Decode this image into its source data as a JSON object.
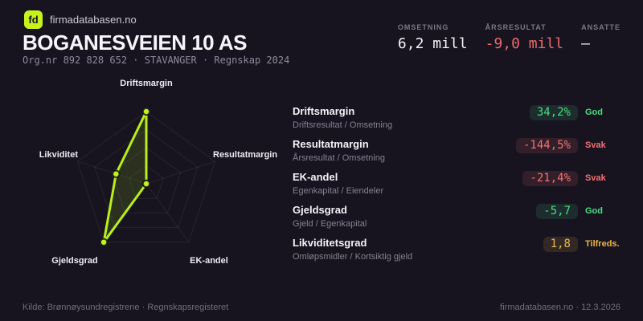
{
  "brand": {
    "logo_text": "fd",
    "site": "firmadatabasen.no",
    "logo_color": "#c7f31d"
  },
  "header": {
    "company_name": "BOGANESVEIEN 10 AS",
    "org_line": "Org.nr 892 828 652  ·  STAVANGER  ·  Regnskap 2024",
    "stats": [
      {
        "label": "OMSETNING",
        "value": "6,2 mill",
        "tone": "neutral"
      },
      {
        "label": "ÅRSRESULTAT",
        "value": "-9,0 mill",
        "tone": "negative"
      },
      {
        "label": "ANSATTE",
        "value": "–",
        "tone": "neutral"
      }
    ]
  },
  "chart_data": {
    "type": "radar",
    "axes": [
      "Driftsmargin",
      "Resultatmargin",
      "EK-andel",
      "Gjeldsgrad",
      "Likviditet"
    ],
    "scores": [
      1.0,
      0.0,
      0.0,
      1.0,
      0.44
    ],
    "raw_values": [
      "34,2%",
      "-144,5%",
      "-21,4%",
      "-5,7",
      "1,8"
    ],
    "rings": 4,
    "center": [
      182,
      229
    ],
    "radius": 90,
    "accent_color": "#b9ef17",
    "grid_on": true,
    "legend": "none"
  },
  "metrics": [
    {
      "title": "Driftsmargin",
      "formula": "Driftsresultat / Omsetning",
      "value": "34,2%",
      "status": "God",
      "tone": "good"
    },
    {
      "title": "Resultatmargin",
      "formula": "Årsresultat / Omsetning",
      "value": "-144,5%",
      "status": "Svak",
      "tone": "bad"
    },
    {
      "title": "EK-andel",
      "formula": "Egenkapital / Eiendeler",
      "value": "-21,4%",
      "status": "Svak",
      "tone": "bad"
    },
    {
      "title": "Gjeldsgrad",
      "formula": "Gjeld / Egenkapital",
      "value": "-5,7",
      "status": "God",
      "tone": "good"
    },
    {
      "title": "Likviditetsgrad",
      "formula": "Omløpsmidler / Kortsiktig gjeld",
      "value": "1,8",
      "status": "Tilfreds.",
      "tone": "warn"
    }
  ],
  "footer": {
    "left": "Kilde: Brønnøysundregistrene · Regnskapsregisteret",
    "right": "firmadatabasen.no · 12.3.2026"
  },
  "colors": {
    "background": "#171420",
    "accent": "#b9ef17",
    "good": "#4ade80",
    "bad": "#f87171",
    "warn": "#e9b949",
    "value_negative": "#ee6a6a"
  }
}
